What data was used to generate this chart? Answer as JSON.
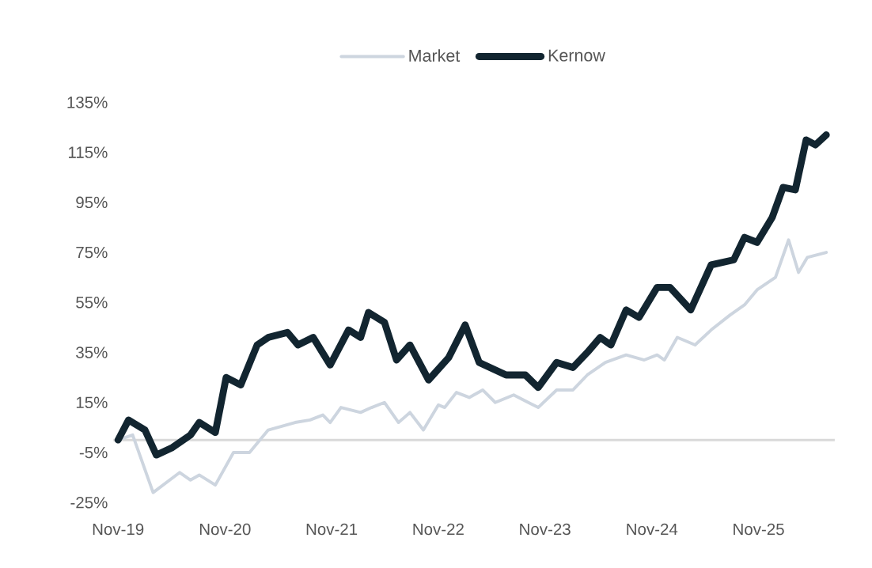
{
  "chart_data": {
    "type": "line",
    "legend": "top",
    "marker": "none",
    "line_style": "solid",
    "grid": false,
    "xlim": [
      "2019-10-16",
      "2026-07-20"
    ],
    "ylim": [
      -25,
      135
    ],
    "xticks": [
      {
        "value": "2019-11-01",
        "label": "Nov-19"
      },
      {
        "value": "2020-11-01",
        "label": "Nov-20"
      },
      {
        "value": "2021-11-01",
        "label": "Nov-21"
      },
      {
        "value": "2022-11-01",
        "label": "Nov-22"
      },
      {
        "value": "2023-11-01",
        "label": "Nov-23"
      },
      {
        "value": "2024-11-01",
        "label": "Nov-24"
      },
      {
        "value": "2025-11-01",
        "label": "Nov-25"
      }
    ],
    "yticks": [
      {
        "value": -25,
        "label": "-25%"
      },
      {
        "value": -5,
        "label": "-5%"
      },
      {
        "value": 15,
        "label": "15%"
      },
      {
        "value": 35,
        "label": "35%"
      },
      {
        "value": 55,
        "label": "55%"
      },
      {
        "value": 75,
        "label": "75%"
      },
      {
        "value": 95,
        "label": "95%"
      },
      {
        "value": 115,
        "label": "115%"
      },
      {
        "value": 135,
        "label": "135%"
      }
    ],
    "ref_lines": [
      {
        "axis": "y",
        "value": 0,
        "color": "#d9d9d9"
      }
    ],
    "series": [
      {
        "name": "Market",
        "color": "#cdd5df",
        "x": [
          "2019-11-01",
          "2019-12-21",
          "2020-02-29",
          "2020-05-30",
          "2020-07-06",
          "2020-08-05",
          "2020-09-29",
          "2020-11-30",
          "2021-01-24",
          "2021-03-29",
          "2021-06-29",
          "2021-08-19",
          "2021-10-02",
          "2021-10-27",
          "2021-12-03",
          "2022-02-08",
          "2022-03-18",
          "2022-05-01",
          "2022-06-18",
          "2022-07-27",
          "2022-09-11",
          "2022-11-01",
          "2022-11-23",
          "2023-01-02",
          "2023-02-15",
          "2023-04-02",
          "2023-05-15",
          "2023-07-17",
          "2023-08-19",
          "2023-10-09",
          "2023-12-11",
          "2024-02-05",
          "2024-03-25",
          "2024-05-26",
          "2024-08-05",
          "2024-10-06",
          "2024-11-19",
          "2024-12-14",
          "2025-01-27",
          "2025-03-29",
          "2025-05-23",
          "2025-07-27",
          "2025-09-14",
          "2025-10-27",
          "2025-12-29",
          "2026-02-12",
          "2026-03-18",
          "2026-04-17",
          "2026-06-21"
        ],
        "values": [
          0,
          2,
          -21,
          -13,
          -16,
          -14,
          -18,
          -5,
          -5,
          4,
          7,
          8,
          10,
          7,
          13,
          11,
          13,
          15,
          7,
          11,
          4,
          14,
          13,
          19,
          17,
          20,
          15,
          18,
          16,
          13,
          20,
          20,
          26,
          31,
          34,
          32,
          34,
          32,
          41,
          38,
          44,
          50,
          54,
          60,
          65,
          80,
          67,
          73,
          75
        ]
      },
      {
        "name": "Kernow",
        "color": "#122530",
        "x": [
          "2019-11-01",
          "2019-12-07",
          "2020-02-01",
          "2020-03-11",
          "2020-05-05",
          "2020-07-06",
          "2020-08-05",
          "2020-09-29",
          "2020-11-05",
          "2020-12-25",
          "2021-02-19",
          "2021-03-29",
          "2021-06-03",
          "2021-07-09",
          "2021-08-30",
          "2021-10-27",
          "2021-12-29",
          "2022-02-08",
          "2022-03-07",
          "2022-05-01",
          "2022-06-11",
          "2022-07-27",
          "2022-09-29",
          "2022-12-07",
          "2023-02-01",
          "2023-03-21",
          "2023-06-21",
          "2023-08-26",
          "2023-10-09",
          "2023-12-11",
          "2024-02-05",
          "2024-03-25",
          "2024-05-08",
          "2024-06-14",
          "2024-08-05",
          "2024-09-18",
          "2024-11-19",
          "2025-01-02",
          "2025-03-14",
          "2025-05-23",
          "2025-08-08",
          "2025-09-14",
          "2025-10-27",
          "2025-12-18",
          "2026-01-24",
          "2026-03-07",
          "2026-04-13",
          "2026-05-15",
          "2026-06-21"
        ],
        "values": [
          0,
          8,
          4,
          -6,
          -3,
          2,
          7,
          3,
          25,
          22,
          38,
          41,
          43,
          38,
          41,
          30,
          44,
          41,
          51,
          47,
          32,
          38,
          24,
          33,
          46,
          31,
          26,
          26,
          21,
          31,
          29,
          35,
          41,
          38,
          52,
          49,
          61,
          61,
          52,
          70,
          72,
          81,
          79,
          89,
          101,
          100,
          120,
          118,
          122
        ]
      }
    ]
  }
}
